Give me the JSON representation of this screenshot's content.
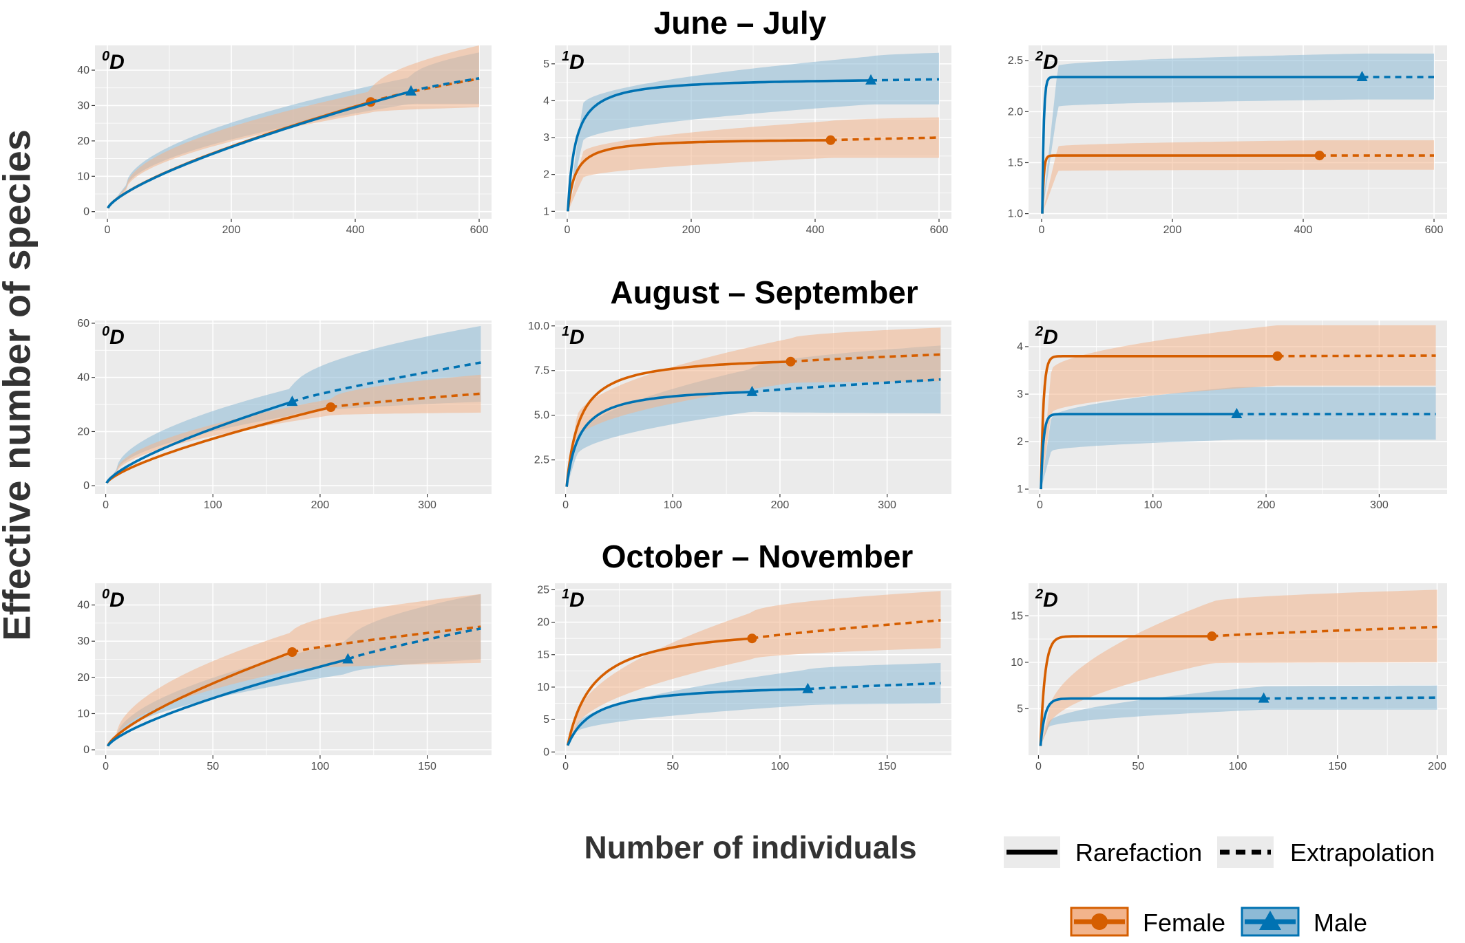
{
  "figure": {
    "row_titles": [
      "June – July",
      "August – September",
      "October – November"
    ],
    "ylabel": "Effective number of species",
    "xlabel": "Number of individuals",
    "legend": {
      "line_types": [
        {
          "label": "Rarefaction",
          "style": "solid"
        },
        {
          "label": "Extrapolation",
          "style": "dashed"
        }
      ],
      "groups": [
        {
          "label": "Female",
          "marker": "circle",
          "color": "#D55E00"
        },
        {
          "label": "Male",
          "marker": "triangle",
          "color": "#0072B2"
        }
      ]
    },
    "colors": {
      "female_line": "#D55E00",
      "male_line": "#0072B2",
      "female_band": "#F2B48C",
      "male_band": "#8DBAD6",
      "panel_bg": "#EBEBEB",
      "grid": "#FFFFFF"
    }
  },
  "chart_data": [
    {
      "type": "line",
      "row": 0,
      "col": 0,
      "tag": "D",
      "tag_sup": "0",
      "xlim": [
        -20,
        620
      ],
      "ylim": [
        -2,
        47
      ],
      "xticks": [
        0,
        200,
        400,
        600
      ],
      "yticks": [
        0,
        10,
        20,
        30,
        40
      ],
      "ytick_labels": [
        "0",
        "10",
        "20",
        "30",
        "40"
      ],
      "series": [
        {
          "group": "Female",
          "q": 0,
          "x_obs": 425,
          "y_obs": 31,
          "x_max": 600,
          "y_max": 37.6,
          "ci": [
            [
              1,
              1,
              1
            ],
            [
              30,
              6,
              7
            ],
            [
              425,
              28,
              34
            ],
            [
              600,
              29.5,
              47
            ]
          ]
        },
        {
          "group": "Male",
          "q": 0,
          "x_obs": 490,
          "y_obs": 34,
          "x_max": 600,
          "y_max": 37.7,
          "ci": [
            [
              1,
              1,
              1
            ],
            [
              30,
              6.5,
              7.5
            ],
            [
              490,
              30.5,
              38
            ],
            [
              600,
              30.5,
              45
            ]
          ]
        }
      ]
    },
    {
      "type": "line",
      "row": 0,
      "col": 1,
      "tag": "D",
      "tag_sup": "1",
      "xlim": [
        -20,
        620
      ],
      "ylim": [
        0.8,
        5.5
      ],
      "xticks": [
        0,
        200,
        400,
        600
      ],
      "yticks": [
        1,
        2,
        3,
        4,
        5
      ],
      "ytick_labels": [
        "1",
        "2",
        "3",
        "4",
        "5"
      ],
      "series": [
        {
          "group": "Female",
          "q": 1,
          "x_obs": 425,
          "y_obs": 2.93,
          "x_max": 600,
          "y_max": 3.0,
          "ci": [
            [
              1,
              1,
              1
            ],
            [
              25,
              1.9,
              2.6
            ],
            [
              425,
              2.45,
              3.45
            ],
            [
              600,
              2.45,
              3.55
            ]
          ]
        },
        {
          "group": "Male",
          "q": 1,
          "x_obs": 490,
          "y_obs": 4.55,
          "x_max": 600,
          "y_max": 4.58,
          "ci": [
            [
              1,
              1,
              1
            ],
            [
              25,
              2.9,
              3.9
            ],
            [
              490,
              3.9,
              5.2
            ],
            [
              600,
              3.9,
              5.3
            ]
          ]
        }
      ]
    },
    {
      "type": "line",
      "row": 0,
      "col": 2,
      "tag": "D",
      "tag_sup": "2",
      "xlim": [
        -20,
        620
      ],
      "ylim": [
        0.95,
        2.65
      ],
      "xticks": [
        0,
        200,
        400,
        600
      ],
      "yticks": [
        1.0,
        1.5,
        2.0,
        2.5
      ],
      "ytick_labels": [
        "1.0",
        "1.5",
        "2.0",
        "2.5"
      ],
      "series": [
        {
          "group": "Female",
          "q": 2,
          "x_obs": 425,
          "y_obs": 1.57,
          "x_max": 600,
          "y_max": 1.57,
          "ci": [
            [
              1,
              1,
              1
            ],
            [
              25,
              1.42,
              1.66
            ],
            [
              425,
              1.43,
              1.72
            ],
            [
              600,
              1.43,
              1.72
            ]
          ]
        },
        {
          "group": "Male",
          "q": 2,
          "x_obs": 490,
          "y_obs": 2.34,
          "x_max": 600,
          "y_max": 2.34,
          "ci": [
            [
              1,
              1,
              1
            ],
            [
              25,
              2.05,
              2.45
            ],
            [
              490,
              2.12,
              2.57
            ],
            [
              600,
              2.12,
              2.57
            ]
          ]
        }
      ]
    },
    {
      "type": "line",
      "row": 1,
      "col": 0,
      "tag": "D",
      "tag_sup": "0",
      "xlim": [
        -10,
        360
      ],
      "ylim": [
        -3,
        61
      ],
      "xticks": [
        0,
        100,
        200,
        300
      ],
      "yticks": [
        0,
        20,
        40,
        60
      ],
      "ytick_labels": [
        "0",
        "20",
        "40",
        "60"
      ],
      "series": [
        {
          "group": "Female",
          "q": 0,
          "x_obs": 210,
          "y_obs": 29,
          "x_max": 350,
          "y_max": 34,
          "ci": [
            [
              1,
              1,
              1
            ],
            [
              10,
              4.5,
              5.5
            ],
            [
              210,
              26,
              32
            ],
            [
              350,
              27,
              41
            ]
          ]
        },
        {
          "group": "Male",
          "q": 0,
          "x_obs": 174,
          "y_obs": 31,
          "x_max": 350,
          "y_max": 45.5,
          "ci": [
            [
              1,
              1,
              1
            ],
            [
              10,
              5,
              6
            ],
            [
              174,
              26,
              36
            ],
            [
              350,
              31,
              59
            ]
          ]
        }
      ]
    },
    {
      "type": "line",
      "row": 1,
      "col": 1,
      "tag": "D",
      "tag_sup": "1",
      "xlim": [
        -10,
        360
      ],
      "ylim": [
        0.6,
        10.3
      ],
      "xticks": [
        0,
        100,
        200,
        300
      ],
      "yticks": [
        2.5,
        5.0,
        7.5,
        10.0
      ],
      "ytick_labels": [
        "2.5",
        "5.0",
        "7.5",
        "10.0"
      ],
      "series": [
        {
          "group": "Female",
          "q": 1,
          "x_obs": 210,
          "y_obs": 8.0,
          "x_max": 350,
          "y_max": 8.4,
          "ci": [
            [
              1,
              1,
              1
            ],
            [
              10,
              3.6,
              4.8
            ],
            [
              210,
              6.8,
              9.3
            ],
            [
              350,
              6.9,
              9.9
            ]
          ]
        },
        {
          "group": "Male",
          "q": 1,
          "x_obs": 174,
          "y_obs": 6.3,
          "x_max": 350,
          "y_max": 7.0,
          "ci": [
            [
              1,
              1,
              1
            ],
            [
              10,
              2.7,
              3.6
            ],
            [
              174,
              5.2,
              7.6
            ],
            [
              350,
              5.1,
              8.9
            ]
          ]
        }
      ]
    },
    {
      "type": "line",
      "row": 1,
      "col": 2,
      "tag": "D",
      "tag_sup": "2",
      "xlim": [
        -10,
        360
      ],
      "ylim": [
        0.9,
        4.55
      ],
      "xticks": [
        0,
        100,
        200,
        300
      ],
      "yticks": [
        1,
        2,
        3,
        4
      ],
      "ytick_labels": [
        "1",
        "2",
        "3",
        "4"
      ],
      "series": [
        {
          "group": "Female",
          "q": 2,
          "x_obs": 210,
          "y_obs": 3.8,
          "x_max": 350,
          "y_max": 3.81,
          "ci": [
            [
              1,
              1,
              1
            ],
            [
              10,
              2.6,
              3.5
            ],
            [
              210,
              3.18,
              4.45
            ],
            [
              350,
              3.18,
              4.45
            ]
          ]
        },
        {
          "group": "Male",
          "q": 2,
          "x_obs": 174,
          "y_obs": 2.58,
          "x_max": 350,
          "y_max": 2.58,
          "ci": [
            [
              1,
              1,
              1
            ],
            [
              10,
              1.8,
              2.5
            ],
            [
              174,
              2.04,
              3.15
            ],
            [
              350,
              2.04,
              3.15
            ]
          ]
        }
      ]
    },
    {
      "type": "line",
      "row": 2,
      "col": 0,
      "tag": "D",
      "tag_sup": "0",
      "xlim": [
        -5,
        180
      ],
      "ylim": [
        -1.5,
        46
      ],
      "xticks": [
        0,
        50,
        100,
        150
      ],
      "yticks": [
        0,
        10,
        20,
        30,
        40
      ],
      "ytick_labels": [
        "0",
        "10",
        "20",
        "30",
        "40"
      ],
      "series": [
        {
          "group": "Female",
          "q": 0,
          "x_obs": 87,
          "y_obs": 27,
          "x_max": 175,
          "y_max": 34,
          "ci": [
            [
              1,
              1,
              1
            ],
            [
              5,
              3,
              4
            ],
            [
              87,
              22,
              32.5
            ],
            [
              175,
              24,
              43
            ]
          ]
        },
        {
          "group": "Male",
          "q": 0,
          "x_obs": 113,
          "y_obs": 25,
          "x_max": 175,
          "y_max": 33.5,
          "ci": [
            [
              1,
              1,
              1
            ],
            [
              5,
              3,
              3.5
            ],
            [
              113,
              21,
              30
            ],
            [
              175,
              25,
              43
            ]
          ]
        }
      ]
    },
    {
      "type": "line",
      "row": 2,
      "col": 1,
      "tag": "D",
      "tag_sup": "1",
      "xlim": [
        -5,
        180
      ],
      "ylim": [
        -0.5,
        26
      ],
      "xticks": [
        0,
        50,
        100,
        150
      ],
      "yticks": [
        0,
        5,
        10,
        15,
        20,
        25
      ],
      "ytick_labels": [
        "0",
        "5",
        "10",
        "15",
        "20",
        "25"
      ],
      "series": [
        {
          "group": "Female",
          "q": 1,
          "x_obs": 87,
          "y_obs": 17.5,
          "x_max": 175,
          "y_max": 20.3,
          "ci": [
            [
              1,
              1,
              1
            ],
            [
              5,
              3.5,
              5
            ],
            [
              87,
              14.3,
              21.5
            ],
            [
              175,
              16,
              24.8
            ]
          ]
        },
        {
          "group": "Male",
          "q": 1,
          "x_obs": 113,
          "y_obs": 9.7,
          "x_max": 175,
          "y_max": 10.6,
          "ci": [
            [
              1,
              1,
              1
            ],
            [
              5,
              3,
              4
            ],
            [
              113,
              7.2,
              12.7
            ],
            [
              175,
              7.5,
              13.7
            ]
          ]
        }
      ]
    },
    {
      "type": "line",
      "row": 2,
      "col": 2,
      "tag": "D",
      "tag_sup": "2",
      "xlim": [
        -5,
        205
      ],
      "ylim": [
        0,
        18.5
      ],
      "xticks": [
        0,
        50,
        100,
        150,
        200
      ],
      "yticks": [
        5,
        10,
        15
      ],
      "ytick_labels": [
        "5",
        "10",
        "15"
      ],
      "series": [
        {
          "group": "Female",
          "q": 2,
          "x_obs": 87,
          "y_obs": 12.8,
          "x_max": 200,
          "y_max": 13.8,
          "ci": [
            [
              1,
              1,
              1
            ],
            [
              5,
              3,
              4.5
            ],
            [
              87,
              9.9,
              16.5
            ],
            [
              200,
              10,
              17.8
            ]
          ]
        },
        {
          "group": "Male",
          "q": 2,
          "x_obs": 113,
          "y_obs": 6.1,
          "x_max": 200,
          "y_max": 6.2,
          "ci": [
            [
              1,
              1,
              1
            ],
            [
              5,
              3,
              3.5
            ],
            [
              113,
              4.9,
              7.4
            ],
            [
              200,
              4.9,
              7.5
            ]
          ]
        }
      ]
    }
  ]
}
